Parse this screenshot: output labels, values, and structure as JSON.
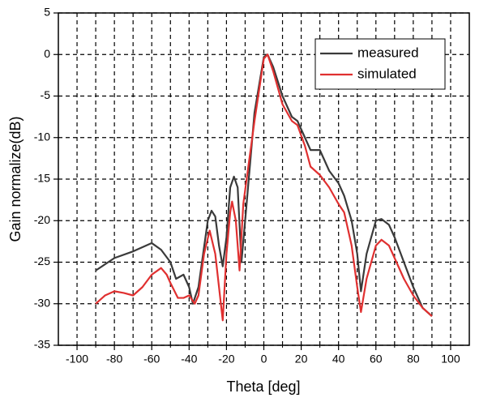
{
  "chart_data": {
    "type": "line",
    "xlabel": "Theta [deg]",
    "ylabel": "Gain normalize(dB)",
    "xlim": [
      -110,
      110
    ],
    "ylim": [
      -35,
      5
    ],
    "xticks": [
      -100,
      -80,
      -60,
      -40,
      -20,
      0,
      20,
      40,
      60,
      80,
      100
    ],
    "xminorticks": [
      -90,
      -70,
      -50,
      -30,
      -10,
      10,
      30,
      50,
      70,
      90
    ],
    "yticks": [
      -35,
      -30,
      -25,
      -20,
      -15,
      -10,
      -5,
      0,
      5
    ],
    "grid": true,
    "legend": "upper right",
    "series": [
      {
        "name": "measured",
        "color": "#3a3a3a",
        "x": [
          -90,
          -80,
          -70,
          -60,
          -55,
          -50,
          -47,
          -43,
          -40,
          -38,
          -35,
          -30,
          -28,
          -26,
          -24,
          -22,
          -20,
          -18,
          -16,
          -14,
          -12,
          -10,
          -5,
          0,
          2,
          5,
          10,
          15,
          18,
          22,
          25,
          30,
          35,
          40,
          43,
          47,
          50,
          52,
          55,
          60,
          63,
          67,
          70,
          75,
          80,
          85,
          90
        ],
        "values": [
          -26,
          -24.5,
          -23.7,
          -22.7,
          -23.5,
          -25,
          -27,
          -26.5,
          -28,
          -30,
          -28,
          -20,
          -18.8,
          -19.5,
          -23,
          -25.5,
          -22,
          -16,
          -14.7,
          -16,
          -25,
          -20,
          -7,
          -0.3,
          0,
          -1.5,
          -5,
          -7.5,
          -8,
          -10,
          -11.5,
          -11.5,
          -14,
          -15.5,
          -17,
          -20,
          -24,
          -28.5,
          -24,
          -20,
          -19.8,
          -20.5,
          -22,
          -25,
          -28,
          -30.5,
          -31.5
        ]
      },
      {
        "name": "simulated",
        "color": "#e03030",
        "x": [
          -90,
          -85,
          -80,
          -75,
          -70,
          -65,
          -60,
          -55,
          -52,
          -50,
          -46,
          -43,
          -40,
          -37,
          -35,
          -32,
          -29,
          -26,
          -23,
          -22,
          -20,
          -18,
          -17,
          -15,
          -13,
          -11,
          -5,
          0,
          2,
          5,
          10,
          15,
          18,
          22,
          25,
          30,
          35,
          40,
          43,
          47,
          50,
          52,
          55,
          60,
          63,
          67,
          70,
          75,
          80,
          85,
          90
        ],
        "values": [
          -30,
          -29,
          -28.5,
          -28.7,
          -29,
          -28,
          -26.5,
          -25.7,
          -26.5,
          -27.5,
          -29.3,
          -29.3,
          -29,
          -30,
          -29,
          -24,
          -21.2,
          -24,
          -30,
          -32,
          -24,
          -19,
          -17.7,
          -20,
          -26,
          -18,
          -8,
          -0.5,
          0,
          -2,
          -6,
          -8,
          -8.5,
          -11,
          -13.5,
          -14.5,
          -16,
          -18,
          -19,
          -23,
          -28,
          -31,
          -27,
          -23,
          -22.3,
          -23,
          -24.5,
          -27,
          -29,
          -30.5,
          -31.5
        ]
      }
    ]
  }
}
